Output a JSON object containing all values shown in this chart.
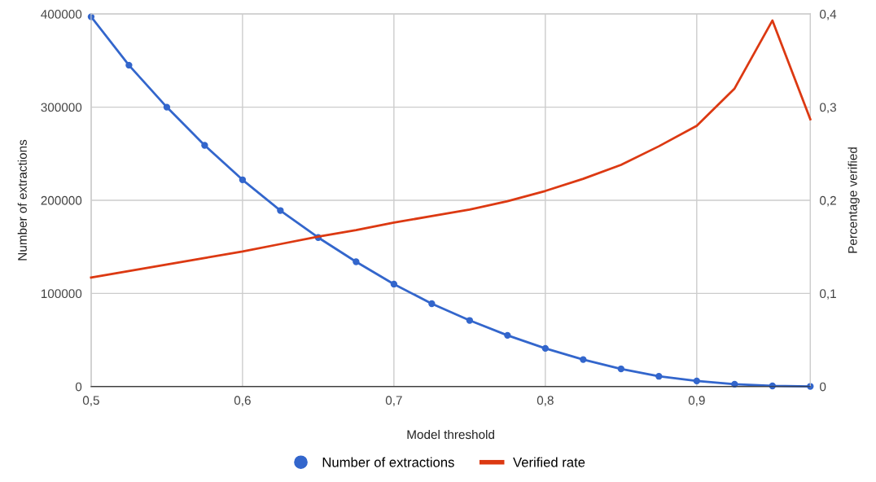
{
  "chart_data": {
    "type": "line",
    "xlabel": "Model threshold",
    "ylabel": "Number of extractions",
    "y2label": "Percentage verified",
    "x": [
      0.5,
      0.525,
      0.55,
      0.575,
      0.6,
      0.625,
      0.65,
      0.675,
      0.7,
      0.725,
      0.75,
      0.775,
      0.8,
      0.825,
      0.85,
      0.875,
      0.9,
      0.925,
      0.95,
      0.975
    ],
    "series": [
      {
        "name": "Number of extractions",
        "color": "#3366cc",
        "marker": "circle",
        "values": [
          397000,
          345000,
          300000,
          259000,
          222000,
          189000,
          160000,
          134000,
          110000,
          89000,
          71000,
          55000,
          41000,
          29000,
          19000,
          11000,
          6000,
          2500,
          700,
          200
        ]
      },
      {
        "name": "Verified rate",
        "color": "#dc3912",
        "axis": "y2",
        "marker": "none",
        "values": [
          0.117,
          0.124,
          0.131,
          0.138,
          0.145,
          0.153,
          0.161,
          0.168,
          0.176,
          0.183,
          0.19,
          0.199,
          0.21,
          0.223,
          0.238,
          0.258,
          0.28,
          0.32,
          0.393,
          0.287
        ]
      }
    ],
    "xlim": [
      0.5,
      0.975
    ],
    "xticks": [
      {
        "value": 0.5,
        "label": "0,5"
      },
      {
        "value": 0.6,
        "label": "0,6"
      },
      {
        "value": 0.7,
        "label": "0,7"
      },
      {
        "value": 0.8,
        "label": "0,8"
      },
      {
        "value": 0.9,
        "label": "0,9"
      }
    ],
    "ylim": [
      0,
      400000
    ],
    "yticks": [
      0,
      100000,
      200000,
      300000,
      400000
    ],
    "y2lim": [
      0,
      0.4
    ],
    "y2ticks": [
      {
        "value": 0,
        "label": "0"
      },
      {
        "value": 0.1,
        "label": "0,1"
      },
      {
        "value": 0.2,
        "label": "0,2"
      },
      {
        "value": 0.3,
        "label": "0,3"
      },
      {
        "value": 0.4,
        "label": "0,4"
      }
    ],
    "grid": true,
    "legend": "bottom",
    "line_style": "solid"
  }
}
